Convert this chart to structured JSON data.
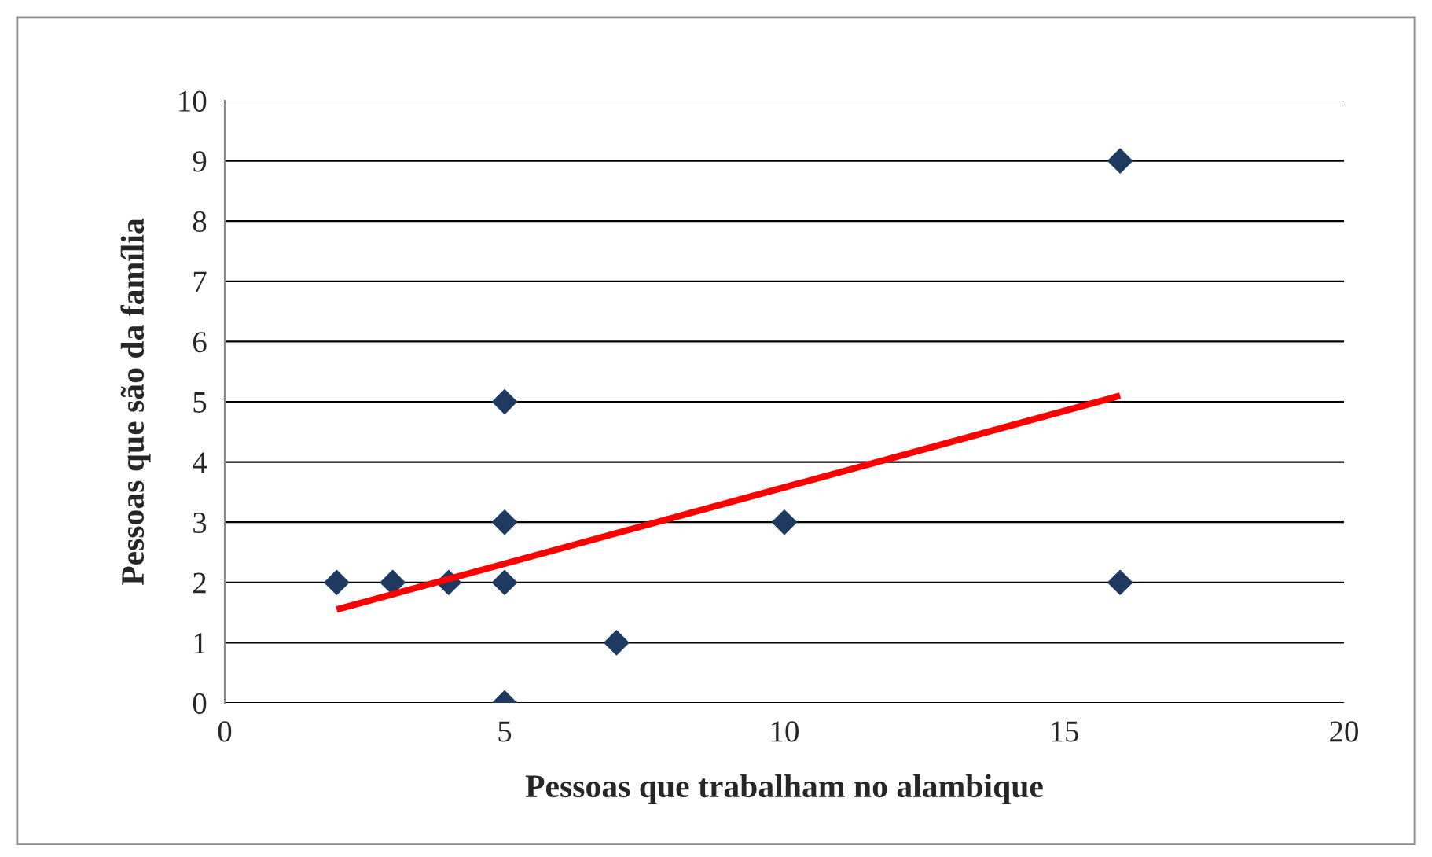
{
  "chart_data": {
    "type": "scatter",
    "xlabel": "Pessoas que trabalham no alambique",
    "ylabel": "Pessoas que são da família",
    "xlim": [
      0,
      20
    ],
    "xticks": [
      0,
      5,
      10,
      15,
      20
    ],
    "ylim": [
      0,
      10
    ],
    "yticks": [
      0,
      1,
      2,
      3,
      4,
      5,
      6,
      7,
      8,
      9,
      10
    ],
    "grid": "y",
    "legend": false,
    "series": [
      {
        "color": "#1f3a60",
        "marker": "diamond",
        "x": [
          2,
          3,
          4,
          5,
          5,
          5,
          5,
          7,
          10,
          16,
          16
        ],
        "values": [
          2,
          2,
          2,
          5,
          3,
          2,
          0,
          1,
          3,
          9,
          2
        ]
      },
      {
        "type": "line",
        "color": "#ff0000",
        "marker": "none",
        "line_style": "solid",
        "x": [
          2,
          16
        ],
        "values": [
          1.55,
          5.1
        ]
      }
    ]
  }
}
